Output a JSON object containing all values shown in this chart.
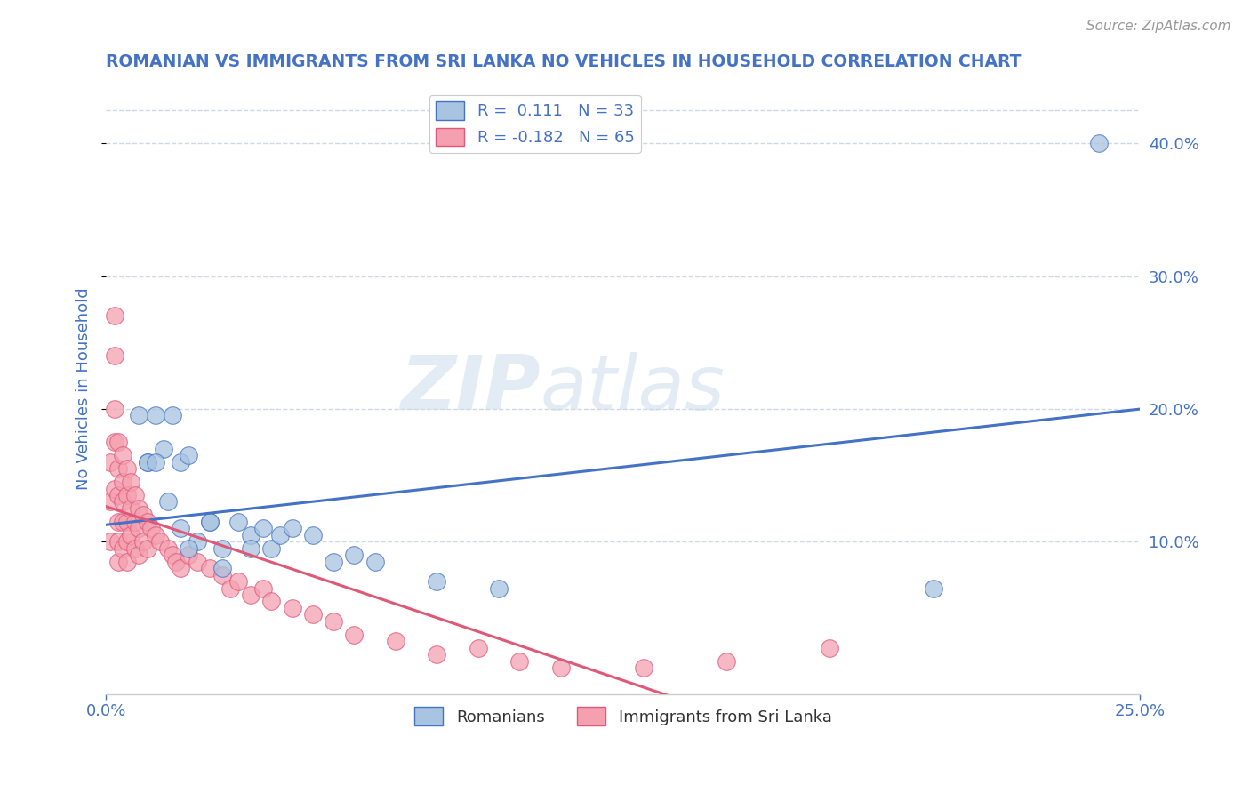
{
  "title": "ROMANIAN VS IMMIGRANTS FROM SRI LANKA NO VEHICLES IN HOUSEHOLD CORRELATION CHART",
  "source": "Source: ZipAtlas.com",
  "ylabel": "No Vehicles in Household",
  "xmin": 0.0,
  "xmax": 0.25,
  "ymin": -0.015,
  "ymax": 0.445,
  "color_blue": "#a8c4e0",
  "color_pink": "#f4a0b0",
  "line_blue": "#4472c4",
  "line_pink": "#e05878",
  "line_dash": "#c8c8c8",
  "watermark_zip": "ZIP",
  "watermark_atlas": "atlas",
  "romanians_x": [
    0.01,
    0.012,
    0.014,
    0.016,
    0.018,
    0.02,
    0.022,
    0.025,
    0.028,
    0.032,
    0.035,
    0.038,
    0.04,
    0.042,
    0.045,
    0.05,
    0.055,
    0.06,
    0.065,
    0.08,
    0.095,
    0.2,
    0.24,
    0.008,
    0.01,
    0.012,
    0.015,
    0.018,
    0.02,
    0.025,
    0.028,
    0.035
  ],
  "romanians_y": [
    0.16,
    0.195,
    0.17,
    0.195,
    0.16,
    0.165,
    0.1,
    0.115,
    0.095,
    0.115,
    0.105,
    0.11,
    0.095,
    0.105,
    0.11,
    0.105,
    0.085,
    0.09,
    0.085,
    0.07,
    0.065,
    0.065,
    0.4,
    0.195,
    0.16,
    0.16,
    0.13,
    0.11,
    0.095,
    0.115,
    0.08,
    0.095
  ],
  "srilanka_x": [
    0.001,
    0.001,
    0.001,
    0.002,
    0.002,
    0.002,
    0.002,
    0.002,
    0.003,
    0.003,
    0.003,
    0.003,
    0.003,
    0.003,
    0.004,
    0.004,
    0.004,
    0.004,
    0.004,
    0.005,
    0.005,
    0.005,
    0.005,
    0.005,
    0.006,
    0.006,
    0.006,
    0.007,
    0.007,
    0.007,
    0.008,
    0.008,
    0.008,
    0.009,
    0.009,
    0.01,
    0.01,
    0.011,
    0.012,
    0.013,
    0.015,
    0.016,
    0.017,
    0.018,
    0.02,
    0.022,
    0.025,
    0.028,
    0.03,
    0.032,
    0.035,
    0.038,
    0.04,
    0.045,
    0.05,
    0.055,
    0.06,
    0.07,
    0.08,
    0.09,
    0.1,
    0.11,
    0.13,
    0.15,
    0.175
  ],
  "srilanka_y": [
    0.16,
    0.13,
    0.1,
    0.27,
    0.24,
    0.2,
    0.175,
    0.14,
    0.175,
    0.155,
    0.135,
    0.115,
    0.1,
    0.085,
    0.165,
    0.145,
    0.13,
    0.115,
    0.095,
    0.155,
    0.135,
    0.115,
    0.1,
    0.085,
    0.145,
    0.125,
    0.105,
    0.135,
    0.115,
    0.095,
    0.125,
    0.11,
    0.09,
    0.12,
    0.1,
    0.115,
    0.095,
    0.11,
    0.105,
    0.1,
    0.095,
    0.09,
    0.085,
    0.08,
    0.09,
    0.085,
    0.08,
    0.075,
    0.065,
    0.07,
    0.06,
    0.065,
    0.055,
    0.05,
    0.045,
    0.04,
    0.03,
    0.025,
    0.015,
    0.02,
    0.01,
    0.005,
    0.005,
    0.01,
    0.02
  ],
  "title_color": "#4472c4",
  "axis_color": "#4472c4",
  "background_color": "#ffffff",
  "grid_color": "#d0d8e8",
  "ytick_vals": [
    0.1,
    0.2,
    0.3,
    0.4
  ],
  "ytick_labels": [
    "10.0%",
    "20.0%",
    "30.0%",
    "40.0%"
  ]
}
